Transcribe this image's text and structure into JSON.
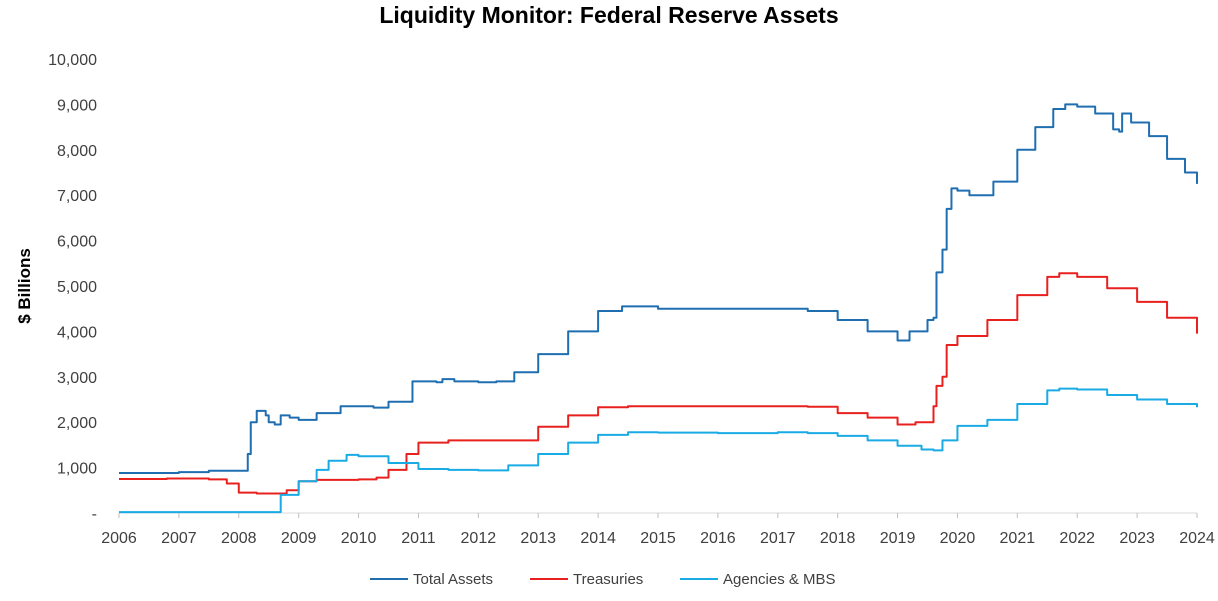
{
  "chart_data": {
    "type": "line",
    "title": "Liquidity Monitor: Federal Reserve Assets",
    "xlabel": "",
    "ylabel": "$ Billions",
    "xlim": [
      2006,
      2024
    ],
    "ylim": [
      0,
      10000
    ],
    "x_ticks": [
      "2006",
      "2007",
      "2008",
      "2009",
      "2010",
      "2011",
      "2012",
      "2013",
      "2014",
      "2015",
      "2016",
      "2017",
      "2018",
      "2019",
      "2020",
      "2021",
      "2022",
      "2023",
      "2024"
    ],
    "y_ticks": [
      {
        "value": 0,
        "label": "-"
      },
      {
        "value": 1000,
        "label": "1,000"
      },
      {
        "value": 2000,
        "label": "2,000"
      },
      {
        "value": 3000,
        "label": "3,000"
      },
      {
        "value": 4000,
        "label": "4,000"
      },
      {
        "value": 5000,
        "label": "5,000"
      },
      {
        "value": 6000,
        "label": "6,000"
      },
      {
        "value": 7000,
        "label": "7,000"
      },
      {
        "value": 8000,
        "label": "8,000"
      },
      {
        "value": 9000,
        "label": "9,000"
      },
      {
        "value": 10000,
        "label": "10,000"
      }
    ],
    "grid": false,
    "legend_position": "bottom",
    "series": [
      {
        "name": "Total Assets",
        "color": "#1F6EB0",
        "points": [
          [
            2006.0,
            880
          ],
          [
            2007.0,
            900
          ],
          [
            2007.5,
            930
          ],
          [
            2008.0,
            930
          ],
          [
            2008.15,
            1300
          ],
          [
            2008.2,
            2000
          ],
          [
            2008.3,
            2250
          ],
          [
            2008.45,
            2150
          ],
          [
            2008.5,
            2000
          ],
          [
            2008.6,
            1950
          ],
          [
            2008.7,
            2150
          ],
          [
            2008.85,
            2100
          ],
          [
            2009.0,
            2050
          ],
          [
            2009.3,
            2200
          ],
          [
            2009.7,
            2350
          ],
          [
            2010.0,
            2350
          ],
          [
            2010.25,
            2320
          ],
          [
            2010.5,
            2450
          ],
          [
            2010.9,
            2900
          ],
          [
            2011.3,
            2880
          ],
          [
            2011.4,
            2950
          ],
          [
            2011.6,
            2900
          ],
          [
            2012.0,
            2880
          ],
          [
            2012.3,
            2900
          ],
          [
            2012.6,
            3100
          ],
          [
            2013.0,
            3500
          ],
          [
            2013.5,
            4000
          ],
          [
            2014.0,
            4450
          ],
          [
            2014.4,
            4550
          ],
          [
            2015.0,
            4500
          ],
          [
            2016.0,
            4500
          ],
          [
            2017.0,
            4500
          ],
          [
            2017.5,
            4450
          ],
          [
            2018.0,
            4250
          ],
          [
            2018.5,
            4000
          ],
          [
            2019.0,
            3800
          ],
          [
            2019.2,
            4000
          ],
          [
            2019.5,
            4250
          ],
          [
            2019.6,
            4300
          ],
          [
            2019.65,
            5300
          ],
          [
            2019.75,
            5800
          ],
          [
            2019.82,
            6700
          ],
          [
            2019.9,
            7150
          ],
          [
            2020.0,
            7100
          ],
          [
            2020.2,
            7000
          ],
          [
            2020.6,
            7300
          ],
          [
            2021.0,
            8000
          ],
          [
            2021.3,
            8500
          ],
          [
            2021.6,
            8900
          ],
          [
            2021.8,
            9000
          ],
          [
            2022.0,
            8950
          ],
          [
            2022.3,
            8800
          ],
          [
            2022.6,
            8450
          ],
          [
            2022.7,
            8400
          ],
          [
            2022.75,
            8800
          ],
          [
            2022.9,
            8600
          ],
          [
            2023.2,
            8300
          ],
          [
            2023.5,
            7800
          ],
          [
            2023.8,
            7500
          ],
          [
            2024.0,
            7250
          ]
        ]
      },
      {
        "name": "Treasuries",
        "color": "#E8201E",
        "points": [
          [
            2006.0,
            750
          ],
          [
            2006.8,
            760
          ],
          [
            2007.3,
            760
          ],
          [
            2007.5,
            740
          ],
          [
            2007.8,
            650
          ],
          [
            2008.0,
            450
          ],
          [
            2008.3,
            430
          ],
          [
            2008.6,
            430
          ],
          [
            2008.8,
            500
          ],
          [
            2009.0,
            700
          ],
          [
            2009.3,
            730
          ],
          [
            2010.0,
            740
          ],
          [
            2010.3,
            780
          ],
          [
            2010.5,
            950
          ],
          [
            2010.8,
            1300
          ],
          [
            2011.0,
            1550
          ],
          [
            2011.5,
            1600
          ],
          [
            2012.0,
            1600
          ],
          [
            2012.4,
            1600
          ],
          [
            2013.0,
            1900
          ],
          [
            2013.5,
            2150
          ],
          [
            2014.0,
            2330
          ],
          [
            2014.5,
            2350
          ],
          [
            2017.5,
            2340
          ],
          [
            2018.0,
            2200
          ],
          [
            2018.5,
            2100
          ],
          [
            2019.0,
            1950
          ],
          [
            2019.3,
            2000
          ],
          [
            2019.6,
            2350
          ],
          [
            2019.65,
            2800
          ],
          [
            2019.75,
            3000
          ],
          [
            2019.82,
            3700
          ],
          [
            2020.0,
            3900
          ],
          [
            2020.5,
            4250
          ],
          [
            2021.0,
            4800
          ],
          [
            2021.5,
            5200
          ],
          [
            2021.7,
            5280
          ],
          [
            2022.0,
            5200
          ],
          [
            2022.5,
            4950
          ],
          [
            2023.0,
            4650
          ],
          [
            2023.5,
            4300
          ],
          [
            2024.0,
            3950
          ]
        ]
      },
      {
        "name": "Agencies & MBS",
        "color": "#1AABE5",
        "points": [
          [
            2006.0,
            20
          ],
          [
            2008.0,
            20
          ],
          [
            2008.5,
            20
          ],
          [
            2008.7,
            400
          ],
          [
            2009.0,
            700
          ],
          [
            2009.3,
            950
          ],
          [
            2009.5,
            1150
          ],
          [
            2009.8,
            1280
          ],
          [
            2010.0,
            1250
          ],
          [
            2010.5,
            1100
          ],
          [
            2011.0,
            970
          ],
          [
            2011.5,
            950
          ],
          [
            2012.0,
            940
          ],
          [
            2012.5,
            1050
          ],
          [
            2013.0,
            1300
          ],
          [
            2013.5,
            1550
          ],
          [
            2014.0,
            1720
          ],
          [
            2014.5,
            1780
          ],
          [
            2015.0,
            1770
          ],
          [
            2016.0,
            1760
          ],
          [
            2017.0,
            1780
          ],
          [
            2017.5,
            1760
          ],
          [
            2018.0,
            1700
          ],
          [
            2018.5,
            1600
          ],
          [
            2019.0,
            1480
          ],
          [
            2019.4,
            1400
          ],
          [
            2019.6,
            1380
          ],
          [
            2019.75,
            1600
          ],
          [
            2020.0,
            1920
          ],
          [
            2020.5,
            2050
          ],
          [
            2021.0,
            2400
          ],
          [
            2021.5,
            2700
          ],
          [
            2021.7,
            2740
          ],
          [
            2022.0,
            2720
          ],
          [
            2022.5,
            2600
          ],
          [
            2023.0,
            2500
          ],
          [
            2023.5,
            2400
          ],
          [
            2024.0,
            2330
          ]
        ]
      }
    ]
  }
}
